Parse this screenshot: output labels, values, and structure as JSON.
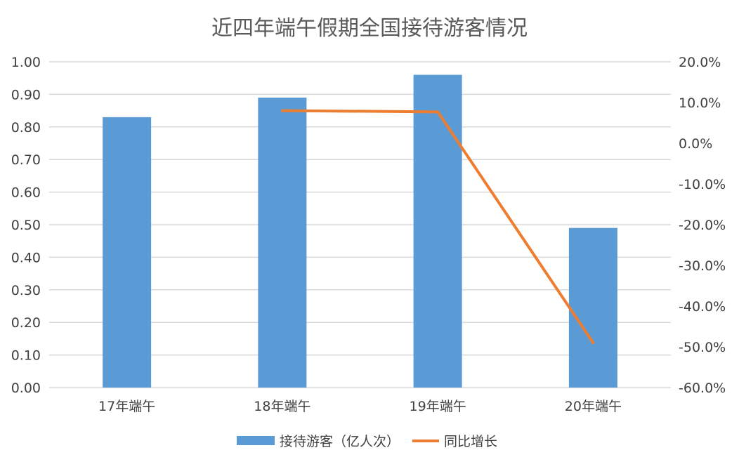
{
  "chart_data": {
    "type": "bar",
    "title": "近四年端午假期全国接待游客情况",
    "categories": [
      "17年端午",
      "18年端午",
      "19年端午",
      "20年端午"
    ],
    "series": [
      {
        "name": "接待游客（亿人次）",
        "type": "bar",
        "axis": "left",
        "values": [
          0.83,
          0.89,
          0.96,
          0.49
        ],
        "color": "#5b9bd5"
      },
      {
        "name": "同比增长",
        "type": "line",
        "axis": "right",
        "values": [
          null,
          8.0,
          7.7,
          -49.0
        ],
        "color": "#ed7d31"
      }
    ],
    "y_left": {
      "min": 0,
      "max": 1.0,
      "ticks": [
        "0.00",
        "0.10",
        "0.20",
        "0.30",
        "0.40",
        "0.50",
        "0.60",
        "0.70",
        "0.80",
        "0.90",
        "1.00"
      ]
    },
    "y_right": {
      "min": -60,
      "max": 20,
      "ticks": [
        "-60.0%",
        "-50.0%",
        "-40.0%",
        "-30.0%",
        "-20.0%",
        "-10.0%",
        "0.0%",
        "10.0%",
        "20.0%"
      ]
    },
    "grid": true,
    "legend_position": "bottom"
  }
}
